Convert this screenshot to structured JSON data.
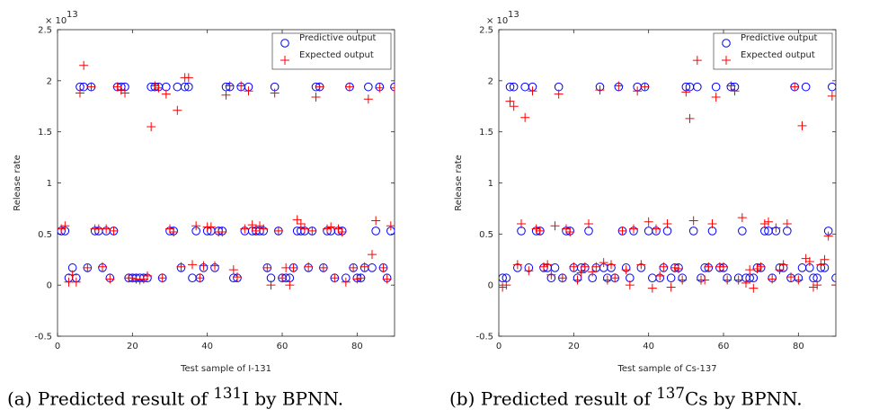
{
  "captions": [
    {
      "label": "(a)",
      "text_pre": "Predicted result of ",
      "sup": "131",
      "text_post": "I by BPNN."
    },
    {
      "label": "(b)",
      "text_pre": "Predicted result of ",
      "sup": "137",
      "text_post": "Cs by BPNN."
    }
  ],
  "chart_data": [
    {
      "type": "scatter",
      "title": "",
      "xlabel": "Test sample of I-131",
      "ylabel": "Release rate",
      "y_exponent_label": "× 10",
      "y_exponent": "13",
      "xlim": [
        0,
        90
      ],
      "ylim": [
        -0.5,
        2.5
      ],
      "xticks": [
        "0",
        "20",
        "40",
        "60",
        "80"
      ],
      "xtick_values": [
        0,
        20,
        40,
        60,
        80
      ],
      "yticks": [
        "-0.5",
        "0",
        "0.5",
        "1",
        "1.5",
        "2",
        "2.5"
      ],
      "ytick_values": [
        -0.5,
        0,
        0.5,
        1,
        1.5,
        2,
        2.5
      ],
      "grid": false,
      "legend_position": "top-right",
      "series": [
        {
          "name": "Predictive output",
          "marker": "circle",
          "color": "#0000ff",
          "x": [
            1,
            2,
            3,
            4,
            5,
            6,
            7,
            8,
            9,
            10,
            11,
            12,
            13,
            14,
            15,
            16,
            17,
            18,
            19,
            20,
            21,
            22,
            23,
            24,
            25,
            26,
            27,
            28,
            29,
            30,
            31,
            32,
            33,
            34,
            35,
            36,
            37,
            38,
            39,
            40,
            41,
            42,
            43,
            44,
            45,
            46,
            47,
            48,
            49,
            50,
            51,
            52,
            53,
            54,
            55,
            56,
            57,
            58,
            59,
            60,
            61,
            62,
            63,
            64,
            65,
            66,
            67,
            68,
            69,
            70,
            71,
            72,
            73,
            74,
            75,
            76,
            77,
            78,
            79,
            80,
            81,
            82,
            83,
            84,
            85,
            86,
            87,
            88,
            89,
            90
          ],
          "y": [
            0.53,
            0.53,
            0.07,
            0.17,
            0.07,
            1.94,
            1.94,
            0.17,
            1.94,
            0.53,
            0.53,
            0.17,
            0.53,
            0.07,
            0.53,
            1.94,
            1.94,
            1.94,
            0.07,
            0.07,
            0.07,
            0.07,
            0.07,
            0.07,
            1.94,
            1.94,
            1.94,
            0.07,
            1.94,
            0.53,
            0.53,
            1.94,
            0.17,
            1.94,
            1.94,
            0.07,
            0.53,
            0.07,
            0.17,
            0.53,
            0.53,
            0.17,
            0.53,
            0.53,
            1.94,
            1.94,
            0.07,
            0.07,
            1.94,
            0.53,
            1.94,
            0.53,
            0.53,
            0.53,
            0.53,
            0.17,
            0.07,
            1.94,
            0.53,
            0.07,
            0.07,
            0.07,
            0.17,
            0.53,
            0.53,
            0.53,
            0.17,
            0.53,
            1.94,
            1.94,
            0.17,
            0.53,
            0.53,
            0.07,
            0.53,
            0.53,
            0.07,
            1.94,
            0.17,
            0.07,
            0.07,
            0.17,
            1.94,
            0.17,
            0.53,
            1.94,
            0.17,
            0.07,
            0.53,
            1.94
          ]
        },
        {
          "name": "Expected output",
          "marker": "plus",
          "color": "#ff0000",
          "x": [
            1,
            2,
            3,
            4,
            5,
            6,
            7,
            8,
            9,
            10,
            11,
            12,
            13,
            14,
            15,
            16,
            17,
            18,
            19,
            20,
            21,
            22,
            23,
            24,
            25,
            26,
            27,
            28,
            29,
            30,
            31,
            32,
            33,
            34,
            35,
            36,
            37,
            38,
            39,
            40,
            41,
            42,
            43,
            44,
            45,
            46,
            47,
            48,
            49,
            50,
            51,
            52,
            53,
            54,
            55,
            56,
            57,
            58,
            59,
            60,
            61,
            62,
            63,
            64,
            65,
            66,
            67,
            68,
            69,
            70,
            71,
            72,
            73,
            74,
            75,
            76,
            77,
            78,
            79,
            80,
            81,
            82,
            83,
            84,
            85,
            86,
            87,
            88,
            89,
            90
          ],
          "y": [
            0.55,
            0.58,
            0.03,
            0.1,
            0.03,
            1.88,
            2.15,
            0.17,
            1.94,
            0.55,
            0.55,
            0.18,
            0.55,
            0.06,
            0.53,
            1.94,
            1.91,
            1.88,
            0.07,
            0.07,
            0.06,
            0.05,
            0.06,
            0.09,
            1.55,
            1.95,
            1.93,
            0.07,
            1.87,
            0.55,
            0.52,
            1.71,
            0.18,
            2.03,
            2.03,
            0.2,
            0.58,
            0.07,
            0.19,
            0.57,
            0.57,
            0.19,
            0.52,
            0.52,
            1.86,
            1.95,
            0.15,
            0.08,
            1.95,
            0.55,
            1.9,
            0.59,
            0.53,
            0.58,
            0.55,
            0.17,
            0.0,
            1.88,
            0.53,
            0.07,
            0.17,
            0.0,
            0.17,
            0.64,
            0.6,
            0.55,
            0.18,
            0.53,
            1.84,
            1.94,
            0.17,
            0.55,
            0.57,
            0.07,
            0.55,
            0.52,
            0.03,
            1.94,
            0.17,
            0.06,
            0.07,
            0.18,
            1.82,
            0.3,
            0.63,
            1.93,
            0.17,
            0.06,
            0.58,
            1.93
          ]
        }
      ]
    },
    {
      "type": "scatter",
      "title": "",
      "xlabel": "Test sample of Cs-137",
      "ylabel": "Release rate",
      "y_exponent_label": "× 10",
      "y_exponent": "13",
      "xlim": [
        0,
        90
      ],
      "ylim": [
        -0.5,
        2.5
      ],
      "xticks": [
        "0",
        "20",
        "40",
        "60",
        "80"
      ],
      "xtick_values": [
        0,
        20,
        40,
        60,
        80
      ],
      "yticks": [
        "-0.5",
        "0",
        "0.5",
        "1",
        "1.5",
        "2",
        "2.5"
      ],
      "ytick_values": [
        -0.5,
        0,
        0.5,
        1,
        1.5,
        2,
        2.5
      ],
      "grid": false,
      "legend_position": "top-right",
      "series": [
        {
          "name": "Predictive output",
          "marker": "circle",
          "color": "#0000ff",
          "x": [
            1,
            2,
            3,
            4,
            5,
            6,
            7,
            8,
            9,
            10,
            11,
            12,
            13,
            14,
            15,
            16,
            17,
            18,
            19,
            20,
            21,
            22,
            23,
            24,
            25,
            26,
            27,
            28,
            29,
            30,
            31,
            32,
            33,
            34,
            35,
            36,
            37,
            38,
            39,
            40,
            41,
            42,
            43,
            44,
            45,
            46,
            47,
            48,
            49,
            50,
            51,
            52,
            53,
            54,
            55,
            56,
            57,
            58,
            59,
            60,
            61,
            62,
            63,
            64,
            65,
            66,
            67,
            68,
            69,
            70,
            71,
            72,
            73,
            74,
            75,
            76,
            77,
            78,
            79,
            80,
            81,
            82,
            83,
            84,
            85,
            86,
            87,
            88,
            89,
            90
          ],
          "y": [
            0.07,
            0.07,
            1.94,
            1.94,
            0.17,
            0.53,
            1.94,
            0.17,
            1.94,
            0.53,
            0.53,
            0.17,
            0.17,
            0.07,
            0.17,
            1.94,
            0.07,
            0.53,
            0.53,
            0.17,
            0.07,
            0.17,
            0.17,
            0.53,
            0.07,
            0.17,
            1.94,
            0.17,
            0.07,
            0.17,
            0.07,
            1.94,
            0.53,
            0.17,
            0.07,
            0.53,
            1.94,
            0.17,
            1.94,
            0.53,
            0.07,
            0.53,
            0.07,
            0.17,
            0.53,
            0.07,
            0.17,
            0.17,
            0.07,
            1.94,
            1.94,
            0.53,
            1.94,
            0.07,
            0.17,
            0.17,
            0.53,
            1.94,
            0.17,
            0.17,
            0.07,
            1.94,
            1.94,
            0.07,
            0.53,
            0.07,
            0.07,
            0.07,
            0.17,
            0.17,
            0.53,
            0.53,
            0.07,
            0.53,
            0.17,
            0.17,
            0.53,
            0.07,
            1.94,
            0.07,
            0.17,
            1.94,
            0.17,
            0.07,
            0.07,
            0.17,
            0.17,
            0.53,
            1.94,
            0.07
          ]
        },
        {
          "name": "Expected output",
          "marker": "plus",
          "color": "#ff0000",
          "x": [
            1,
            2,
            3,
            4,
            5,
            6,
            7,
            8,
            9,
            10,
            11,
            12,
            13,
            14,
            15,
            16,
            17,
            18,
            19,
            20,
            21,
            22,
            23,
            24,
            25,
            26,
            27,
            28,
            29,
            30,
            31,
            32,
            33,
            34,
            35,
            36,
            37,
            38,
            39,
            40,
            41,
            42,
            43,
            44,
            45,
            46,
            47,
            48,
            49,
            50,
            51,
            52,
            53,
            54,
            55,
            56,
            57,
            58,
            59,
            60,
            61,
            62,
            63,
            64,
            65,
            66,
            67,
            68,
            69,
            70,
            71,
            72,
            73,
            74,
            75,
            76,
            77,
            78,
            79,
            80,
            81,
            82,
            83,
            84,
            85,
            86,
            87,
            88,
            89,
            90
          ],
          "y": [
            -0.02,
            0.0,
            1.8,
            1.75,
            0.2,
            0.6,
            1.64,
            0.14,
            1.9,
            0.55,
            0.53,
            0.18,
            0.2,
            0.1,
            0.58,
            1.87,
            0.07,
            0.55,
            0.52,
            0.18,
            0.05,
            0.12,
            0.18,
            0.6,
            0.13,
            0.18,
            1.91,
            0.22,
            0.05,
            0.2,
            0.07,
            1.95,
            0.53,
            0.15,
            0.0,
            0.55,
            1.9,
            0.2,
            1.94,
            0.62,
            -0.03,
            0.55,
            0.09,
            0.18,
            0.6,
            -0.02,
            0.17,
            0.16,
            0.05,
            1.89,
            1.63,
            0.63,
            2.2,
            0.05,
            0.05,
            0.18,
            0.6,
            1.84,
            0.18,
            0.18,
            0.05,
            1.95,
            1.9,
            0.05,
            0.66,
            0.02,
            0.15,
            -0.03,
            0.16,
            0.18,
            0.6,
            0.62,
            0.06,
            0.56,
            0.15,
            0.2,
            0.6,
            0.08,
            1.94,
            0.05,
            1.56,
            0.26,
            0.23,
            -0.02,
            0.0,
            0.2,
            0.25,
            0.48,
            1.85,
            0.0
          ]
        }
      ]
    }
  ]
}
